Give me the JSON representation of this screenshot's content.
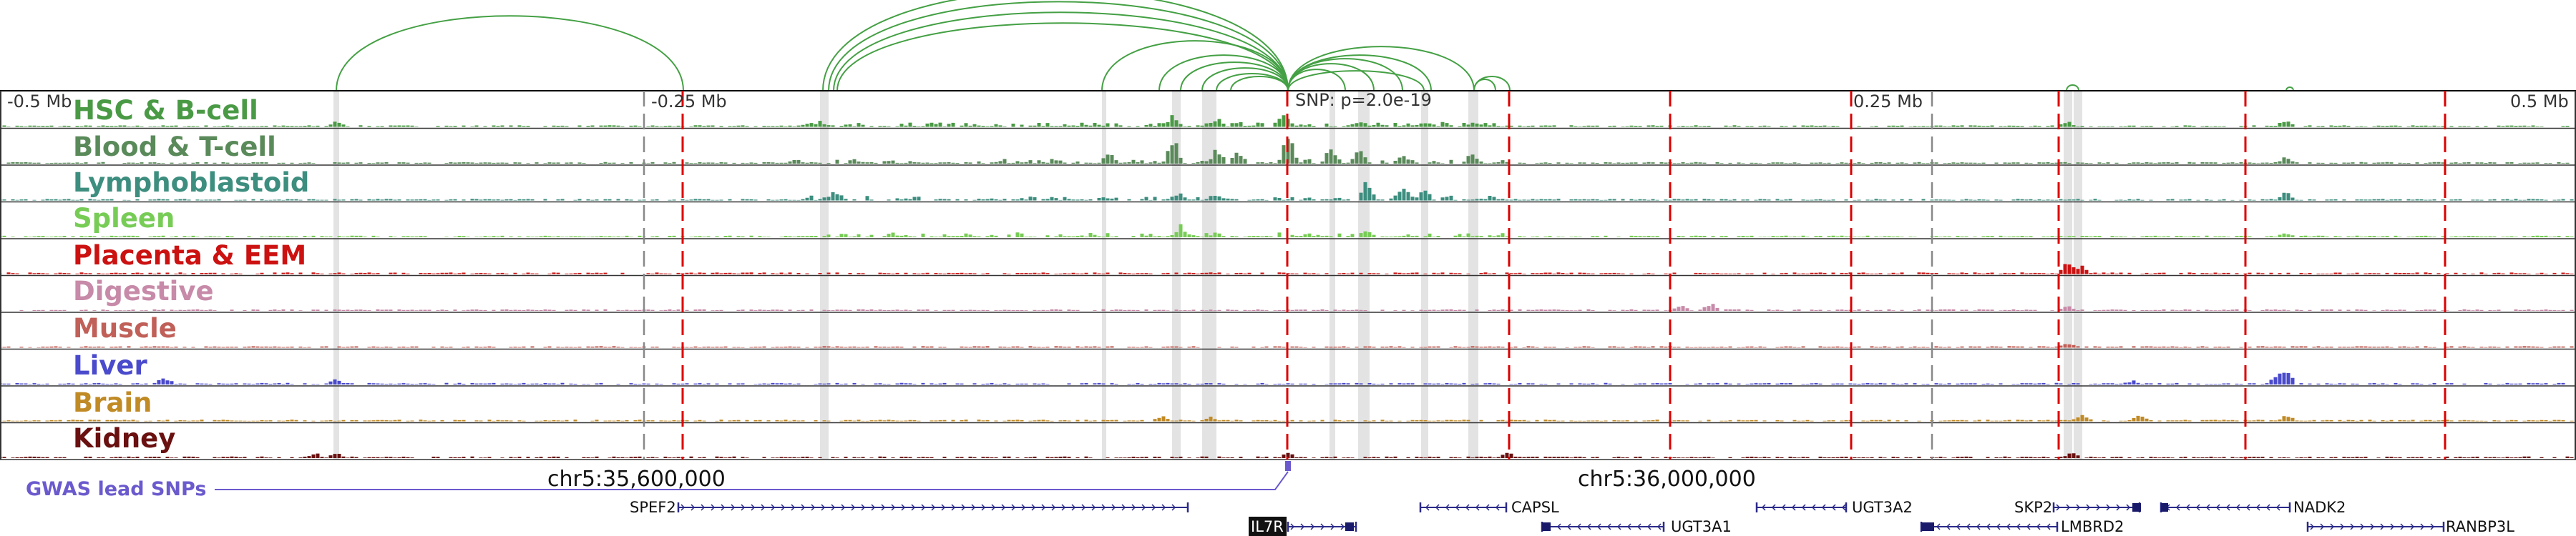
{
  "axis": {
    "tick_labels": [
      "-0.5 Mb",
      "-0.25 Mb",
      "0.25 Mb",
      "0.5 Mb"
    ],
    "snp_label": "SNP: p=2.0e-19"
  },
  "tracks": [
    {
      "name": "HSC & B-cell",
      "color": "#4a9a45"
    },
    {
      "name": "Blood & T-cell",
      "color": "#5a8a5a"
    },
    {
      "name": "Lymphoblastoid",
      "color": "#3d8e7f"
    },
    {
      "name": "Spleen",
      "color": "#77cc55"
    },
    {
      "name": "Placenta & EEM",
      "color": "#cc1111"
    },
    {
      "name": "Digestive",
      "color": "#c78aa8"
    },
    {
      "name": "Muscle",
      "color": "#c06058"
    },
    {
      "name": "Liver",
      "color": "#4a4acc"
    },
    {
      "name": "Brain",
      "color": "#c08a25"
    },
    {
      "name": "Kidney",
      "color": "#6a1010"
    }
  ],
  "gwas": {
    "label": "GWAS lead SNPs",
    "color": "#6a5acd"
  },
  "coordinates": [
    "chr5:35,600,000",
    "chr5:36,000,000"
  ],
  "genes": [
    {
      "name": "SPEF2",
      "highlight": false
    },
    {
      "name": "IL7R",
      "highlight": true
    },
    {
      "name": "CAPSL",
      "highlight": false
    },
    {
      "name": "UGT3A1",
      "highlight": false
    },
    {
      "name": "UGT3A2",
      "highlight": false
    },
    {
      "name": "SKP2",
      "highlight": false
    },
    {
      "name": "LMBRD2",
      "highlight": false
    },
    {
      "name": "NADK2",
      "highlight": false
    },
    {
      "name": "RANBP3L",
      "highlight": false
    }
  ],
  "colors": {
    "arc": "#44a044",
    "red_marker": "#dd0000",
    "gray_band": "#cccccc",
    "grid": "#000000"
  }
}
